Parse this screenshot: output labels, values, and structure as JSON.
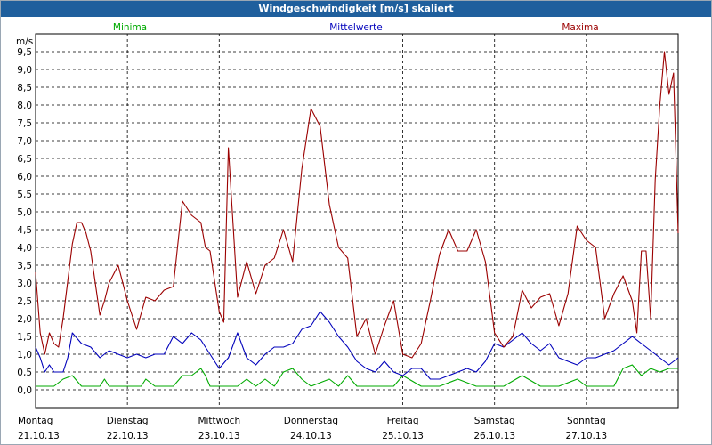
{
  "window": {
    "title": "Windgeschwindigkeit [m/s] skaliert"
  },
  "chart_data": {
    "type": "line",
    "title": "Windgeschwindigkeit [m/s] skaliert",
    "ylabel": "m/s",
    "ylim": [
      -0.5,
      10
    ],
    "yticks": [
      "0,0",
      "0,5",
      "1,0",
      "1,5",
      "2,0",
      "2,5",
      "3,0",
      "3,5",
      "4,0",
      "4,5",
      "5,0",
      "5,5",
      "6,0",
      "6,5",
      "7,0",
      "7,5",
      "8,0",
      "8,5",
      "9,0",
      "9,5"
    ],
    "ytick_values": [
      0,
      0.5,
      1,
      1.5,
      2,
      2.5,
      3,
      3.5,
      4,
      4.5,
      5,
      5.5,
      6,
      6.5,
      7,
      7.5,
      8,
      8.5,
      9,
      9.5
    ],
    "grid": true,
    "legend_position": "top",
    "xlim": [
      0,
      7
    ],
    "x_categories": [
      {
        "day": "Montag",
        "date": "21.10.13"
      },
      {
        "day": "Dienstag",
        "date": "22.10.13"
      },
      {
        "day": "Mittwoch",
        "date": "23.10.13"
      },
      {
        "day": "Donnerstag",
        "date": "24.10.13"
      },
      {
        "day": "Freitag",
        "date": "25.10.13"
      },
      {
        "day": "Samstag",
        "date": "26.10.13"
      },
      {
        "day": "Sonntag",
        "date": "27.10.13"
      }
    ],
    "series": [
      {
        "name": "Minima",
        "color": "#00aa00",
        "x": [
          0.0,
          0.2,
          0.3,
          0.4,
          0.5,
          0.6,
          0.7,
          0.75,
          0.8,
          0.9,
          1.0,
          1.15,
          1.2,
          1.3,
          1.4,
          1.5,
          1.6,
          1.7,
          1.8,
          1.85,
          1.9,
          2.0,
          2.1,
          2.2,
          2.3,
          2.4,
          2.5,
          2.6,
          2.7,
          2.8,
          2.9,
          3.0,
          3.1,
          3.2,
          3.3,
          3.4,
          3.5,
          3.6,
          3.7,
          3.8,
          3.9,
          4.0,
          4.2,
          4.4,
          4.6,
          4.8,
          5.0,
          5.1,
          5.3,
          5.5,
          5.7,
          5.9,
          6.0,
          6.2,
          6.3,
          6.4,
          6.5,
          6.6,
          6.7,
          6.8,
          6.9,
          7.0
        ],
        "y": [
          0.1,
          0.1,
          0.3,
          0.4,
          0.1,
          0.1,
          0.1,
          0.3,
          0.1,
          0.1,
          0.1,
          0.1,
          0.3,
          0.1,
          0.1,
          0.1,
          0.4,
          0.4,
          0.6,
          0.4,
          0.1,
          0.1,
          0.1,
          0.1,
          0.3,
          0.1,
          0.3,
          0.1,
          0.5,
          0.6,
          0.3,
          0.1,
          0.2,
          0.3,
          0.1,
          0.4,
          0.1,
          0.1,
          0.1,
          0.1,
          0.1,
          0.4,
          0.1,
          0.1,
          0.3,
          0.1,
          0.1,
          0.1,
          0.4,
          0.1,
          0.1,
          0.3,
          0.1,
          0.1,
          0.1,
          0.6,
          0.7,
          0.4,
          0.6,
          0.5,
          0.6,
          0.6
        ]
      },
      {
        "name": "Mittelwerte",
        "color": "#0000bb",
        "x": [
          0.0,
          0.05,
          0.1,
          0.15,
          0.2,
          0.3,
          0.35,
          0.4,
          0.5,
          0.6,
          0.7,
          0.8,
          0.9,
          1.0,
          1.1,
          1.2,
          1.3,
          1.4,
          1.5,
          1.6,
          1.7,
          1.8,
          1.85,
          1.9,
          1.95,
          2.0,
          2.1,
          2.2,
          2.3,
          2.4,
          2.5,
          2.6,
          2.7,
          2.8,
          2.9,
          3.0,
          3.1,
          3.2,
          3.3,
          3.4,
          3.5,
          3.6,
          3.7,
          3.8,
          3.9,
          4.0,
          4.1,
          4.2,
          4.3,
          4.4,
          4.5,
          4.6,
          4.7,
          4.8,
          4.9,
          5.0,
          5.1,
          5.2,
          5.3,
          5.4,
          5.5,
          5.6,
          5.7,
          5.8,
          5.9,
          6.0,
          6.1,
          6.2,
          6.3,
          6.4,
          6.5,
          6.6,
          6.7,
          6.8,
          6.9,
          7.0
        ],
        "y": [
          1.2,
          0.9,
          0.5,
          0.7,
          0.5,
          0.5,
          0.9,
          1.6,
          1.3,
          1.2,
          0.9,
          1.1,
          1.0,
          0.9,
          1.0,
          0.9,
          1.0,
          1.0,
          1.5,
          1.3,
          1.6,
          1.4,
          1.2,
          1.0,
          0.8,
          0.6,
          0.9,
          1.6,
          0.9,
          0.7,
          1.0,
          1.2,
          1.2,
          1.3,
          1.7,
          1.8,
          2.2,
          1.9,
          1.5,
          1.2,
          0.8,
          0.6,
          0.5,
          0.8,
          0.5,
          0.4,
          0.6,
          0.6,
          0.3,
          0.3,
          0.4,
          0.5,
          0.6,
          0.5,
          0.8,
          1.3,
          1.2,
          1.4,
          1.6,
          1.3,
          1.1,
          1.3,
          0.9,
          0.8,
          0.7,
          0.9,
          0.9,
          1.0,
          1.1,
          1.3,
          1.5,
          1.3,
          1.1,
          0.9,
          0.7,
          0.9
        ]
      },
      {
        "name": "Maxima",
        "color": "#9b0000",
        "x": [
          0.0,
          0.05,
          0.1,
          0.15,
          0.2,
          0.25,
          0.3,
          0.4,
          0.45,
          0.5,
          0.55,
          0.6,
          0.7,
          0.75,
          0.8,
          0.9,
          1.0,
          1.1,
          1.2,
          1.3,
          1.4,
          1.5,
          1.6,
          1.7,
          1.8,
          1.85,
          1.9,
          2.0,
          2.05,
          2.1,
          2.2,
          2.3,
          2.4,
          2.5,
          2.6,
          2.7,
          2.8,
          2.9,
          3.0,
          3.1,
          3.2,
          3.3,
          3.4,
          3.5,
          3.6,
          3.7,
          3.8,
          3.9,
          4.0,
          4.1,
          4.2,
          4.3,
          4.4,
          4.5,
          4.6,
          4.7,
          4.8,
          4.9,
          5.0,
          5.1,
          5.2,
          5.3,
          5.4,
          5.5,
          5.6,
          5.7,
          5.8,
          5.9,
          6.0,
          6.1,
          6.2,
          6.3,
          6.4,
          6.5,
          6.55,
          6.6,
          6.65,
          6.7,
          6.75,
          6.8,
          6.85,
          6.9,
          6.95,
          7.0
        ],
        "y": [
          3.3,
          1.6,
          1.0,
          1.6,
          1.3,
          1.2,
          2.0,
          4.1,
          4.7,
          4.7,
          4.4,
          3.9,
          2.1,
          2.5,
          3.0,
          3.5,
          2.5,
          1.7,
          2.6,
          2.5,
          2.8,
          2.9,
          5.3,
          4.9,
          4.7,
          4.0,
          3.9,
          2.2,
          1.9,
          6.8,
          2.6,
          3.6,
          2.7,
          3.5,
          3.7,
          4.5,
          3.6,
          6.2,
          7.9,
          7.4,
          5.2,
          4.0,
          3.7,
          1.5,
          2.0,
          1.0,
          1.8,
          2.5,
          1.0,
          0.9,
          1.3,
          2.5,
          3.8,
          4.5,
          3.9,
          3.9,
          4.5,
          3.6,
          1.6,
          1.2,
          1.5,
          2.8,
          2.3,
          2.6,
          2.7,
          1.8,
          2.7,
          4.6,
          4.2,
          4.0,
          2.0,
          2.7,
          3.2,
          2.5,
          1.6,
          3.9,
          3.9,
          2.0,
          5.9,
          8.0,
          9.5,
          8.3,
          8.9,
          4.4
        ]
      }
    ]
  }
}
